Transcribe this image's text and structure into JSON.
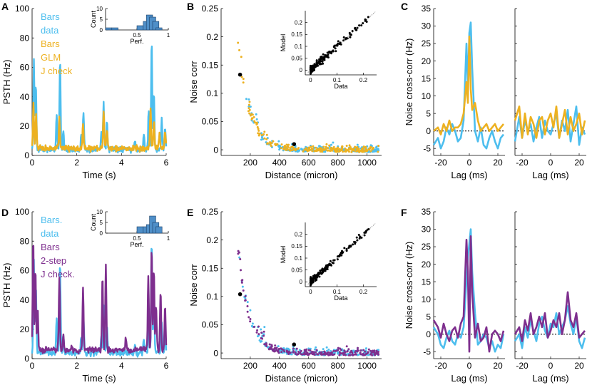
{
  "colors": {
    "data": "#4dbeee",
    "glm": "#edb120",
    "twostep": "#7e2f8e",
    "ink": "#000000"
  },
  "chart_data": [
    {
      "panel_label": "A",
      "type": "line",
      "title": "",
      "xlabel": "Time (s)",
      "ylabel": "PSTH (Hz)",
      "xlim": [
        0,
        6
      ],
      "ylim": [
        0,
        100
      ],
      "xticks": [
        0,
        2,
        4,
        6
      ],
      "yticks": [
        0,
        20,
        40,
        60,
        80,
        100
      ],
      "legend": [
        {
          "text": "Bars",
          "color_key": "data"
        },
        {
          "text": "data",
          "color_key": "data"
        },
        {
          "text": "Bars",
          "color_key": "glm"
        },
        {
          "text": "GLM",
          "color_key": "glm"
        },
        {
          "text": "J check",
          "color_key": "glm"
        }
      ],
      "series": [
        {
          "name": "Bars data",
          "color_key": "data",
          "baseline": 4,
          "peaks": [
            [
              0.08,
              62
            ],
            [
              0.17,
              45
            ],
            [
              1.1,
              25
            ],
            [
              1.25,
              62
            ],
            [
              1.4,
              12
            ],
            [
              2.2,
              10
            ],
            [
              2.3,
              25
            ],
            [
              3.1,
              12
            ],
            [
              3.2,
              32
            ],
            [
              3.35,
              18
            ],
            [
              4.6,
              6
            ],
            [
              5.0,
              10
            ],
            [
              5.22,
              28
            ],
            [
              5.35,
              76
            ],
            [
              5.45,
              40
            ],
            [
              5.8,
              20
            ],
            [
              5.95,
              15
            ]
          ]
        },
        {
          "name": "Bars GLM J check",
          "color_key": "glm",
          "baseline": 5,
          "peaks": [
            [
              0.06,
              30
            ],
            [
              0.18,
              22
            ],
            [
              1.22,
              20
            ],
            [
              2.28,
              17
            ],
            [
              3.2,
              25
            ],
            [
              3.35,
              12
            ],
            [
              5.3,
              28
            ],
            [
              5.45,
              18
            ],
            [
              5.7,
              10
            ],
            [
              5.95,
              12
            ]
          ]
        }
      ],
      "inset": {
        "type": "histogram",
        "xlabel": "Perf.",
        "ylabel": "Count",
        "xlim": [
          0,
          1
        ],
        "ylim": [
          0,
          10
        ],
        "xticks": [
          0.5,
          1
        ],
        "xtick_labels": [
          "0.5",
          "1"
        ],
        "yticks": [
          0,
          5,
          10
        ],
        "bin_centers": [
          0.05,
          0.15,
          0.55,
          0.65,
          0.7,
          0.75,
          0.8,
          0.85
        ],
        "counts": [
          1,
          1,
          2,
          4,
          7,
          6,
          4,
          1
        ]
      }
    },
    {
      "panel_label": "B",
      "type": "scatter",
      "title": "",
      "xlabel": "Distance (micron)",
      "ylabel": "Noise corr",
      "xlim": [
        0,
        1100
      ],
      "ylim": [
        -0.01,
        0.25
      ],
      "xticks": [
        200,
        400,
        600,
        800,
        1000
      ],
      "yticks": [
        0,
        0.05,
        0.1,
        0.15,
        0.2,
        0.25
      ],
      "ytick_labels": [
        "0",
        "0.05",
        "0.1",
        "0.15",
        "0.2",
        "0.25"
      ],
      "series": [
        {
          "name": "data",
          "color_key": "data",
          "seed": 11,
          "n": 230,
          "amplitude": 0.2,
          "decay": 75,
          "noise": 0.012
        },
        {
          "name": "GLM",
          "color_key": "glm",
          "seed": 23,
          "n": 230,
          "amplitude": 0.19,
          "decay": 80,
          "noise": 0.012
        }
      ],
      "highlight_points": [
        [
          130,
          0.133
        ],
        [
          500,
          0.01
        ]
      ],
      "inset": {
        "type": "scatter",
        "xlabel": "Data",
        "ylabel": "Model",
        "xlim": [
          -0.02,
          0.25
        ],
        "ylim": [
          -0.02,
          0.25
        ],
        "xticks": [
          0,
          0.1,
          0.2
        ],
        "xtick_labels": [
          "0",
          "0.1",
          "0.2"
        ],
        "yticks": [
          0,
          0.05,
          0.1,
          0.15,
          0.2
        ],
        "ytick_labels": [
          "0",
          "0.05",
          "0.1",
          "0.15",
          "0.2"
        ],
        "seed": 5,
        "n": 200,
        "scatter_noise": 0.018
      }
    },
    {
      "panel_label": "C",
      "type": "line",
      "title": "",
      "xlabel": "Lag (ms)",
      "ylabel": "Noise cross-corr (Hz)",
      "xlim": [
        -25,
        25
      ],
      "ylim": [
        -7,
        35
      ],
      "xticks": [
        -20,
        0,
        20
      ],
      "yticks": [
        -5,
        0,
        5,
        10,
        15,
        20,
        25,
        30,
        35
      ],
      "series": [
        {
          "name": "data",
          "color_key": "data",
          "lags": [
            -25,
            -22,
            -20,
            -18,
            -16,
            -14,
            -12,
            -10,
            -8,
            -6,
            -4,
            -2,
            -1,
            0,
            1,
            2,
            4,
            6,
            8,
            10,
            12,
            14,
            16,
            18,
            20,
            22,
            24
          ],
          "values": [
            -4,
            -2,
            -5,
            -3,
            1,
            -1,
            2,
            0,
            -3,
            -2,
            3,
            25,
            12,
            28,
            31,
            18,
            0,
            -3,
            1,
            -4,
            -5,
            -2,
            0,
            -3,
            -5,
            -2,
            -1
          ]
        },
        {
          "name": "GLM",
          "color_key": "glm",
          "lags": [
            -25,
            -22,
            -20,
            -18,
            -16,
            -14,
            -12,
            -10,
            -8,
            -6,
            -4,
            -2,
            -1,
            0,
            1,
            2,
            4,
            6,
            8,
            10,
            12,
            14,
            16,
            18,
            20,
            22,
            24
          ],
          "values": [
            0,
            1,
            -1,
            2,
            0,
            3,
            0,
            1,
            1,
            2,
            5,
            14,
            8,
            27,
            12,
            6,
            8,
            3,
            0,
            1,
            2,
            0,
            1,
            2,
            0,
            1,
            2
          ]
        }
      ],
      "second_pair": [
        {
          "name": "data",
          "color_key": "data",
          "lags": [
            -25,
            -22,
            -20,
            -18,
            -16,
            -14,
            -12,
            -10,
            -8,
            -6,
            -4,
            -2,
            0,
            2,
            4,
            6,
            8,
            10,
            12,
            14,
            16,
            18,
            20,
            22,
            24
          ],
          "values": [
            -3,
            4,
            -2,
            3,
            0,
            2,
            -3,
            1,
            4,
            -2,
            3,
            0,
            -1,
            2,
            5,
            -2,
            3,
            0,
            6,
            -3,
            2,
            7,
            -4,
            1,
            -1
          ]
        },
        {
          "name": "GLM",
          "color_key": "glm",
          "lags": [
            -25,
            -22,
            -20,
            -18,
            -16,
            -14,
            -12,
            -10,
            -8,
            -6,
            -4,
            -2,
            0,
            2,
            4,
            6,
            8,
            10,
            12,
            14,
            16,
            18,
            20,
            22,
            24
          ],
          "values": [
            3,
            7,
            -2,
            5,
            -1,
            4,
            2,
            -2,
            3,
            4,
            -1,
            3,
            5,
            1,
            7,
            -2,
            2,
            6,
            -1,
            4,
            0,
            2,
            5,
            -1,
            3
          ]
        }
      ]
    },
    {
      "panel_label": "D",
      "type": "line",
      "title": "",
      "xlabel": "Time (s)",
      "ylabel": "PSTH (Hz)",
      "xlim": [
        0,
        6
      ],
      "ylim": [
        0,
        100
      ],
      "xticks": [
        0,
        2,
        4,
        6
      ],
      "yticks": [
        0,
        20,
        40,
        60,
        80,
        100
      ],
      "legend": [
        {
          "text": "Bars.",
          "color_key": "data"
        },
        {
          "text": "data",
          "color_key": "data"
        },
        {
          "text": "Bars",
          "color_key": "twostep"
        },
        {
          "text": "2-step",
          "color_key": "twostep"
        },
        {
          "text": "J check.",
          "color_key": "twostep"
        }
      ],
      "series": [
        {
          "name": "Bars data",
          "color_key": "data",
          "baseline": 4,
          "peaks": [
            [
              0.08,
              62
            ],
            [
              0.17,
              45
            ],
            [
              1.1,
              25
            ],
            [
              1.25,
              62
            ],
            [
              1.4,
              12
            ],
            [
              2.2,
              10
            ],
            [
              2.3,
              25
            ],
            [
              3.1,
              12
            ],
            [
              3.2,
              32
            ],
            [
              3.35,
              18
            ],
            [
              4.6,
              6
            ],
            [
              5.0,
              10
            ],
            [
              5.22,
              28
            ],
            [
              5.35,
              76
            ],
            [
              5.45,
              40
            ],
            [
              5.8,
              20
            ],
            [
              5.95,
              15
            ]
          ]
        },
        {
          "name": "Bars 2-step J check.",
          "color_key": "twostep",
          "baseline": 6,
          "peaks": [
            [
              0.05,
              76
            ],
            [
              0.15,
              55
            ],
            [
              0.25,
              30
            ],
            [
              1.22,
              50
            ],
            [
              1.4,
              10
            ],
            [
              2.28,
              40
            ],
            [
              3.15,
              50
            ],
            [
              3.3,
              58
            ],
            [
              4.2,
              8
            ],
            [
              5.2,
              50
            ],
            [
              5.35,
              70
            ],
            [
              5.45,
              55
            ],
            [
              5.55,
              30
            ],
            [
              5.75,
              40
            ],
            [
              5.95,
              30
            ]
          ]
        }
      ],
      "inset": {
        "type": "histogram",
        "xlabel": "Perf.",
        "ylabel": "Count",
        "xlim": [
          0,
          1
        ],
        "ylim": [
          0,
          10
        ],
        "xticks": [
          0.5,
          1
        ],
        "xtick_labels": [
          "0.5",
          "1"
        ],
        "yticks": [
          0,
          5,
          10
        ],
        "bin_centers": [
          0.55,
          0.65,
          0.7,
          0.75,
          0.8,
          0.85
        ],
        "counts": [
          3,
          3,
          4,
          8,
          5,
          3
        ]
      }
    },
    {
      "panel_label": "E",
      "type": "scatter",
      "title": "",
      "xlabel": "Distance (micron)",
      "ylabel": "Noise corr",
      "xlim": [
        0,
        1100
      ],
      "ylim": [
        -0.01,
        0.25
      ],
      "xticks": [
        200,
        400,
        600,
        800,
        1000
      ],
      "yticks": [
        0,
        0.05,
        0.1,
        0.15,
        0.2,
        0.25
      ],
      "ytick_labels": [
        "0",
        "0.05",
        "0.1",
        "0.15",
        "0.2",
        "0.25"
      ],
      "series": [
        {
          "name": "data",
          "color_key": "data",
          "seed": 31,
          "n": 230,
          "amplitude": 0.2,
          "decay": 75,
          "noise": 0.012
        },
        {
          "name": "2-step",
          "color_key": "twostep",
          "seed": 47,
          "n": 230,
          "amplitude": 0.19,
          "decay": 75,
          "noise": 0.012
        }
      ],
      "highlight_points": [
        [
          130,
          0.104
        ],
        [
          500,
          0.015
        ]
      ],
      "inset": {
        "type": "scatter",
        "xlabel": "Data",
        "ylabel": "Model",
        "xlim": [
          -0.02,
          0.25
        ],
        "ylim": [
          -0.02,
          0.25
        ],
        "xticks": [
          0,
          0.1,
          0.2
        ],
        "xtick_labels": [
          "0",
          "0.1",
          "0.2"
        ],
        "yticks": [
          0,
          0.05,
          0.1,
          0.15,
          0.2
        ],
        "ytick_labels": [
          "0",
          "0.05",
          "0.1",
          "0.15",
          "0.2"
        ],
        "seed": 9,
        "n": 200,
        "scatter_noise": 0.015
      }
    },
    {
      "panel_label": "F",
      "type": "line",
      "title": "",
      "xlabel": "Lag (ms)",
      "ylabel": "Noise cross-corr (Hz)",
      "xlim": [
        -25,
        25
      ],
      "ylim": [
        -7,
        35
      ],
      "xticks": [
        -20,
        0,
        20
      ],
      "yticks": [
        -5,
        0,
        5,
        10,
        15,
        20,
        25,
        30,
        35
      ],
      "series": [
        {
          "name": "data",
          "color_key": "data",
          "lags": [
            -25,
            -22,
            -20,
            -18,
            -16,
            -14,
            -12,
            -10,
            -8,
            -6,
            -4,
            -2,
            -1,
            0,
            1,
            2,
            4,
            6,
            8,
            10,
            12,
            14,
            16,
            18,
            20,
            22,
            24
          ],
          "values": [
            2,
            0,
            -3,
            -4,
            -1,
            1,
            -2,
            -3,
            0,
            -1,
            2,
            15,
            22,
            26,
            30,
            18,
            6,
            -3,
            -2,
            0,
            -1,
            -4,
            -2,
            -5,
            -3,
            -4,
            0
          ]
        },
        {
          "name": "2-step",
          "color_key": "twostep",
          "lags": [
            -25,
            -22,
            -20,
            -18,
            -16,
            -14,
            -12,
            -10,
            -8,
            -6,
            -4,
            -2,
            -1,
            0,
            1,
            2,
            4,
            6,
            8,
            10,
            12,
            14,
            16,
            18,
            20,
            22,
            24
          ],
          "values": [
            4,
            2,
            -1,
            3,
            0,
            -2,
            1,
            2,
            -1,
            3,
            5,
            27,
            18,
            -5,
            28,
            12,
            -1,
            3,
            -2,
            -1,
            2,
            -5,
            0,
            1,
            0,
            -2,
            1
          ]
        }
      ],
      "second_pair": [
        {
          "name": "data",
          "color_key": "data",
          "lags": [
            -25,
            -22,
            -20,
            -18,
            -16,
            -14,
            -12,
            -10,
            -8,
            -6,
            -4,
            -2,
            0,
            2,
            4,
            6,
            8,
            10,
            12,
            14,
            16,
            18,
            20,
            22,
            24
          ],
          "values": [
            -2,
            0,
            -4,
            2,
            -1,
            4,
            1,
            -2,
            3,
            5,
            1,
            -1,
            3,
            2,
            6,
            0,
            2,
            4,
            8,
            3,
            0,
            5,
            -2,
            -4,
            -1
          ]
        },
        {
          "name": "2-step",
          "color_key": "twostep",
          "lags": [
            -25,
            -22,
            -20,
            -18,
            -16,
            -14,
            -12,
            -10,
            -8,
            -6,
            -4,
            -2,
            0,
            2,
            4,
            6,
            8,
            10,
            12,
            14,
            16,
            18,
            20,
            22,
            24
          ],
          "values": [
            0,
            2,
            -2,
            4,
            1,
            6,
            0,
            2,
            5,
            2,
            6,
            -1,
            1,
            4,
            2,
            6,
            0,
            4,
            12,
            4,
            2,
            6,
            -1,
            0,
            1
          ]
        }
      ]
    }
  ]
}
